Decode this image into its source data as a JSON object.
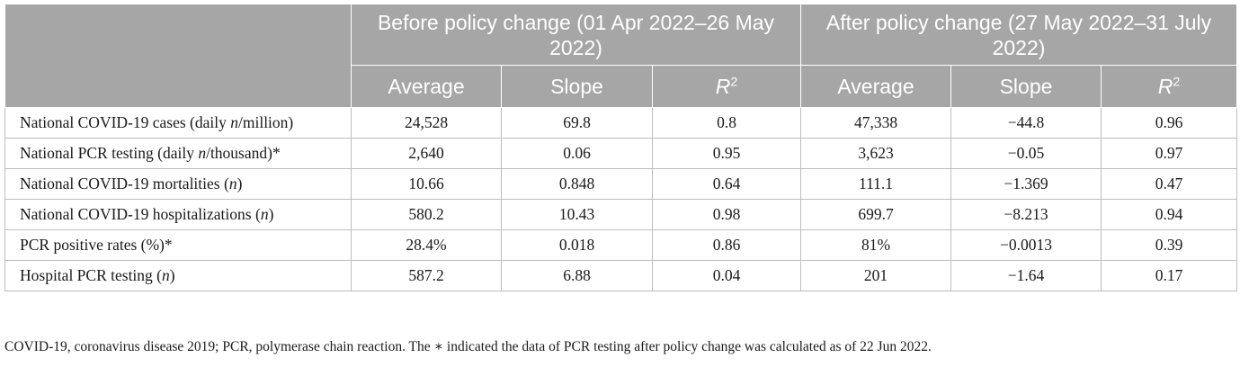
{
  "header": {
    "groups": [
      "Before policy change (01 Apr 2022–26 May 2022)",
      "After policy change (27 May 2022–31 July 2022)"
    ],
    "columns": {
      "average": "Average",
      "slope": "Slope",
      "r_base": "R",
      "r_sup": "2"
    }
  },
  "rows": [
    {
      "label_pre": "National COVID-19 cases (daily ",
      "label_var": "n",
      "label_post": "/million)",
      "before": [
        "24,528",
        "69.8",
        "0.8"
      ],
      "after": [
        "47,338",
        "−44.8",
        "0.96"
      ]
    },
    {
      "label_pre": "National PCR testing (daily ",
      "label_var": "n",
      "label_post": "/thousand)*",
      "before": [
        "2,640",
        "0.06",
        "0.95"
      ],
      "after": [
        "3,623",
        "−0.05",
        "0.97"
      ]
    },
    {
      "label_pre": "National COVID-19 mortalities (",
      "label_var": "n",
      "label_post": ")",
      "before": [
        "10.66",
        "0.848",
        "0.64"
      ],
      "after": [
        "111.1",
        "−1.369",
        "0.47"
      ]
    },
    {
      "label_pre": "National COVID-19 hospitalizations (",
      "label_var": "n",
      "label_post": ")",
      "before": [
        "580.2",
        "10.43",
        "0.98"
      ],
      "after": [
        "699.7",
        "−8.213",
        "0.94"
      ]
    },
    {
      "label_pre": "PCR positive rates (%)*",
      "label_var": "",
      "label_post": "",
      "before": [
        "28.4%",
        "0.018",
        "0.86"
      ],
      "after": [
        "81%",
        "−0.0013",
        "0.39"
      ]
    },
    {
      "label_pre": "Hospital PCR testing (",
      "label_var": "n",
      "label_post": ")",
      "before": [
        "587.2",
        "6.88",
        "0.04"
      ],
      "after": [
        "201",
        "−1.64",
        "0.17"
      ]
    }
  ],
  "footnote": "COVID-19, coronavirus disease 2019; PCR, polymerase chain reaction. The ∗ indicated the data of PCR testing after policy change was calculated as of 22 Jun 2022."
}
